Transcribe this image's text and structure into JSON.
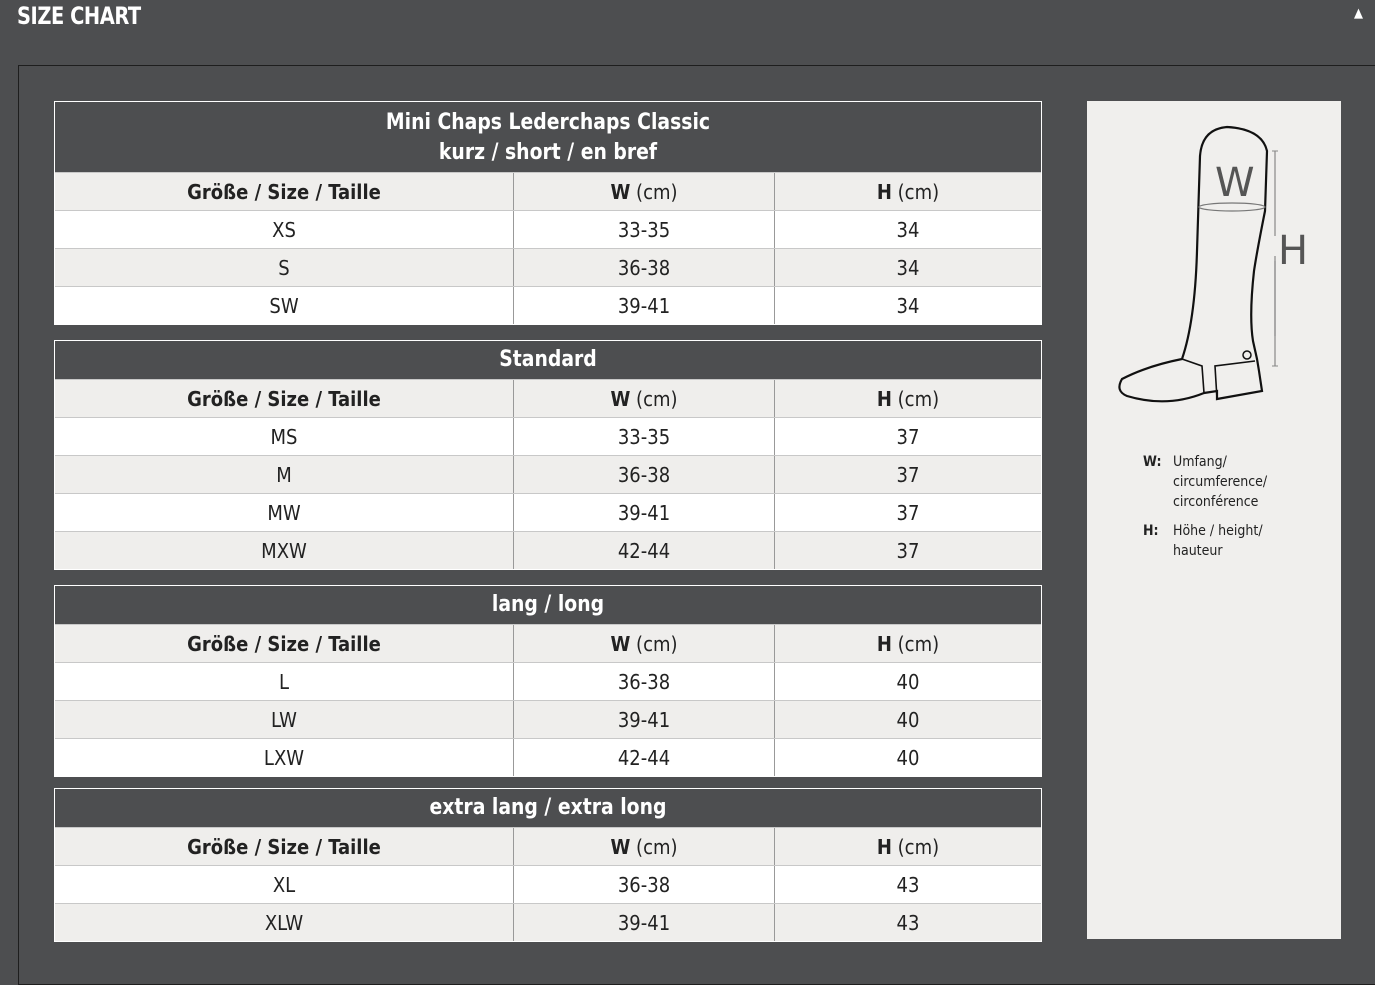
{
  "page_title": "SIZE CHART",
  "collapse_icon": "triangle-up-icon",
  "sections": [
    {
      "title": "Mini Chaps Lederchaps Classic",
      "subtitle": "kurz / short / en bref",
      "headers": [
        "Größe / Size / Taille",
        "W",
        "(cm)",
        "H",
        "(cm)"
      ],
      "rows": [
        [
          "XS",
          "33-35",
          "34"
        ],
        [
          "S",
          "36-38",
          "34"
        ],
        [
          "SW",
          "39-41",
          "34"
        ]
      ]
    },
    {
      "title": "Standard",
      "headers": [
        "Größe / Size / Taille",
        "W",
        "(cm)",
        "H",
        "(cm)"
      ],
      "rows": [
        [
          "MS",
          "33-35",
          "37"
        ],
        [
          "M",
          "36-38",
          "37"
        ],
        [
          "MW",
          "39-41",
          "37"
        ],
        [
          "MXW",
          "42-44",
          "37"
        ]
      ]
    },
    {
      "title": "lang / long",
      "headers": [
        "Größe / Size / Taille",
        "W",
        "(cm)",
        "H",
        "(cm)"
      ],
      "rows": [
        [
          "L",
          "36-38",
          "40"
        ],
        [
          "LW",
          "39-41",
          "40"
        ],
        [
          "LXW",
          "42-44",
          "40"
        ]
      ]
    },
    {
      "title": "extra lang / extra long",
      "headers": [
        "Größe / Size / Taille",
        "W",
        "(cm)",
        "H",
        "(cm)"
      ],
      "rows": [
        [
          "XL",
          "36-38",
          "43"
        ],
        [
          "XLW",
          "39-41",
          "43"
        ]
      ]
    }
  ],
  "diagram": {
    "w_label": "W",
    "h_label": "H",
    "legend": [
      {
        "key": "W:",
        "lines": [
          "Umfang/",
          "circumference/",
          "circonférence"
        ]
      },
      {
        "key": "H:",
        "lines": [
          "Höhe / height/",
          "hauteur"
        ]
      }
    ]
  }
}
